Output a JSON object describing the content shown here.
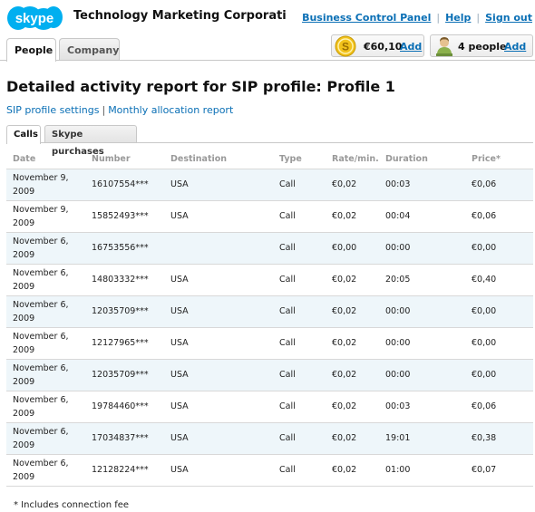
{
  "header": {
    "logo_text": "skype",
    "company_name": "Technology Marketing Corporati",
    "links": [
      "Business Control Panel",
      "Help",
      "Sign out"
    ],
    "link_separator": "|"
  },
  "main_tabs": [
    {
      "label": "People",
      "active": true
    },
    {
      "label": "Company",
      "active": false
    }
  ],
  "credit": {
    "icon": "skype-credit-coin-icon",
    "amount": "€60,10",
    "add_label": "Add"
  },
  "people": {
    "icon": "person-icon",
    "count_text": "4 people",
    "add_label": "Add"
  },
  "page_title": "Detailed activity report for SIP profile: Profile 1",
  "sublinks": {
    "settings": "SIP profile settings",
    "separator": "|",
    "monthly": "Monthly allocation report"
  },
  "sub_tabs": [
    {
      "label": "Calls",
      "active": true
    },
    {
      "label": "Skype purchases",
      "active": false
    }
  ],
  "table": {
    "columns": [
      "Date",
      "Number",
      "Destination",
      "Type",
      "Rate/min.",
      "Duration",
      "Price*"
    ],
    "rows": [
      {
        "date": "November 9, 2009",
        "number": "16107554***",
        "destination": "USA",
        "type": "Call",
        "rate": "€0,02",
        "duration": "00:03",
        "price": "€0,06"
      },
      {
        "date": "November 9, 2009",
        "number": "15852493***",
        "destination": "USA",
        "type": "Call",
        "rate": "€0,02",
        "duration": "00:04",
        "price": "€0,06"
      },
      {
        "date": "November 6, 2009",
        "number": "16753556***",
        "destination": "",
        "type": "Call",
        "rate": "€0,00",
        "duration": "00:00",
        "price": "€0,00"
      },
      {
        "date": "November 6, 2009",
        "number": "14803332***",
        "destination": "USA",
        "type": "Call",
        "rate": "€0,02",
        "duration": "20:05",
        "price": "€0,40"
      },
      {
        "date": "November 6, 2009",
        "number": "12035709***",
        "destination": "USA",
        "type": "Call",
        "rate": "€0,02",
        "duration": "00:00",
        "price": "€0,00"
      },
      {
        "date": "November 6, 2009",
        "number": "12127965***",
        "destination": "USA",
        "type": "Call",
        "rate": "€0,02",
        "duration": "00:00",
        "price": "€0,00"
      },
      {
        "date": "November 6, 2009",
        "number": "12035709***",
        "destination": "USA",
        "type": "Call",
        "rate": "€0,02",
        "duration": "00:00",
        "price": "€0,00"
      },
      {
        "date": "November 6, 2009",
        "number": "19784460***",
        "destination": "USA",
        "type": "Call",
        "rate": "€0,02",
        "duration": "00:03",
        "price": "€0,06"
      },
      {
        "date": "November 6, 2009",
        "number": "17034837***",
        "destination": "USA",
        "type": "Call",
        "rate": "€0,02",
        "duration": "19:01",
        "price": "€0,38"
      },
      {
        "date": "November 6, 2009",
        "number": "12128224***",
        "destination": "USA",
        "type": "Call",
        "rate": "€0,02",
        "duration": "01:00",
        "price": "€0,07"
      }
    ]
  },
  "footnote": "* Includes connection fee",
  "colors": {
    "link": "#0a6fb5",
    "logo": "#00aff0",
    "row_alt": "#eef6fa",
    "header_text": "#999999"
  }
}
